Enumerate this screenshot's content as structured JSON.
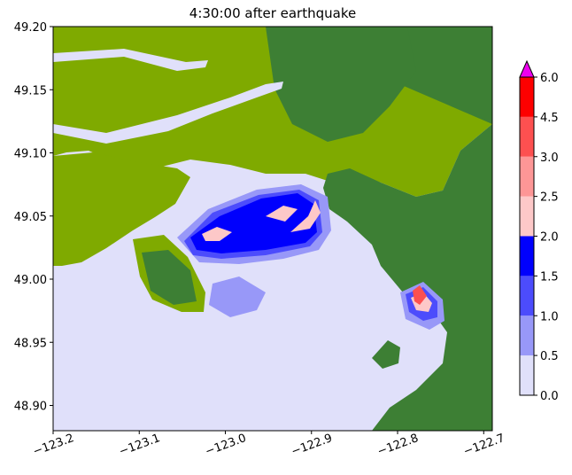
{
  "chart_data": {
    "type": "heatmap",
    "title": "4:30:00 after earthquake",
    "xlim": [
      -123.2,
      -122.69
    ],
    "ylim": [
      48.88,
      49.2
    ],
    "x_ticks": [
      -123.2,
      -123.1,
      -123.0,
      -122.9,
      -122.8,
      -122.7
    ],
    "x_tick_labels": [
      "−123.2",
      "−123.1",
      "−123.0",
      "−122.9",
      "−122.8",
      "−122.7"
    ],
    "x_tick_rotation_deg": 20,
    "y_ticks": [
      48.9,
      48.95,
      49.0,
      49.05,
      49.1,
      49.15,
      49.2
    ],
    "y_tick_labels": [
      "48.90",
      "48.95",
      "49.00",
      "49.05",
      "49.10",
      "49.15",
      "49.20"
    ],
    "colorbar": {
      "boundaries": [
        0.0,
        0.5,
        1.0,
        1.5,
        2.0,
        2.5,
        3.0,
        4.5,
        6.0
      ],
      "labels": [
        "0.0",
        "0.5",
        "1.0",
        "1.5",
        "2.0",
        "2.5",
        "3.0",
        "4.5",
        "6.0"
      ],
      "colors": [
        "#e0e0fa",
        "#9898f8",
        "#4c4cfc",
        "#0000fd",
        "#fdc8c8",
        "#fd9696",
        "#fd5050",
        "#fd0000"
      ],
      "extend_max_color": "#ee00ee"
    },
    "land_colors": {
      "low": "#7faa00",
      "high": "#3d7f34"
    },
    "water_color": "#e0e0fa"
  }
}
